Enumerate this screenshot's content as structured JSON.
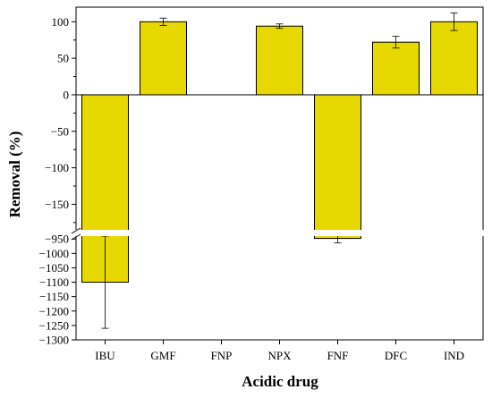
{
  "chart_data": {
    "type": "bar",
    "xlabel": "Acidic drug",
    "ylabel": "Removal (%)",
    "categories": [
      "IBU",
      "GMF",
      "FNP",
      "NPX",
      "FNF",
      "DFC",
      "IND"
    ],
    "values": [
      -1100,
      100,
      null,
      94,
      -948,
      72,
      100
    ],
    "error": [
      160,
      5,
      null,
      3,
      15,
      8,
      12
    ],
    "axis_break": {
      "upper_range": [
        -185,
        120
      ],
      "lower_range": [
        -1300,
        -940
      ]
    },
    "y_ticks_upper": [
      100,
      50,
      0,
      -50,
      -100,
      -150
    ],
    "y_ticks_lower": [
      -950,
      -1000,
      -1050,
      -1100,
      -1150,
      -1200,
      -1250,
      -1300
    ],
    "y_tick_labels_upper": [
      "100",
      "50",
      "0",
      "−50",
      "−100",
      "−150"
    ],
    "y_tick_labels_lower": [
      "−950",
      "−1000",
      "−1050",
      "−1100",
      "−1150",
      "−1200",
      "−1250",
      "−1300"
    ],
    "bar_color": "#e6d800",
    "grid": false
  }
}
